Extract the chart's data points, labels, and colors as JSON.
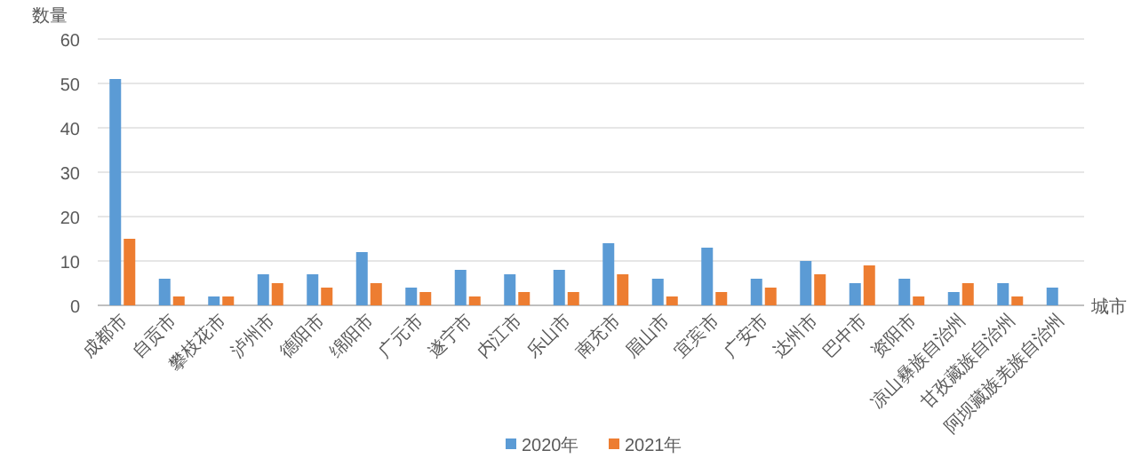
{
  "chart_data": {
    "type": "bar",
    "xlabel": "城市",
    "ylabel": "数量",
    "categories": [
      "成都市",
      "自贡市",
      "攀枝花市",
      "泸州市",
      "德阳市",
      "绵阳市",
      "广元市",
      "遂宁市",
      "内江市",
      "乐山市",
      "南充市",
      "眉山市",
      "宜宾市",
      "广安市",
      "达州市",
      "巴中市",
      "资阳市",
      "凉山彝族自治州",
      "甘孜藏族自治州",
      "阿坝藏族羌族自治州"
    ],
    "series": [
      {
        "name": "2020年",
        "color": "#5b9bd5",
        "values": [
          51,
          6,
          2,
          7,
          7,
          12,
          4,
          8,
          7,
          8,
          14,
          6,
          13,
          6,
          10,
          5,
          6,
          3,
          5,
          4
        ]
      },
      {
        "name": "2021年",
        "color": "#ed7d31",
        "values": [
          15,
          2,
          2,
          5,
          4,
          5,
          3,
          2,
          3,
          3,
          7,
          2,
          3,
          4,
          7,
          9,
          2,
          5,
          2,
          null
        ]
      }
    ],
    "ylim": [
      0,
      60
    ],
    "yticks": [
      0,
      10,
      20,
      30,
      40,
      50,
      60
    ],
    "grid": "y",
    "legend": "bottom"
  }
}
